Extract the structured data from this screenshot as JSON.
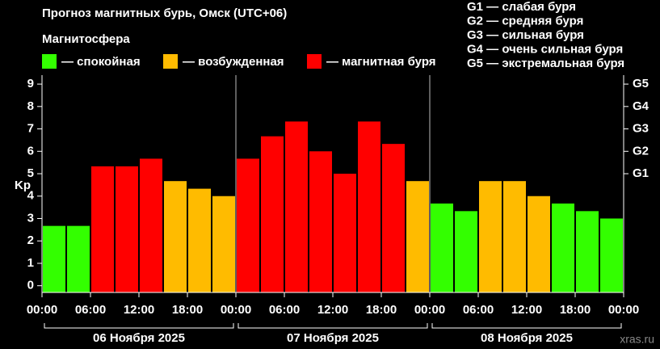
{
  "chart_data": {
    "type": "bar",
    "title": "Прогноз магнитных бурь, Омск (UTC+06)",
    "legend": {
      "title": "Магнитосфера",
      "items": [
        {
          "name": "— спокойная",
          "color": "#33ff00"
        },
        {
          "name": "— возбужденная",
          "color": "#ffbb00"
        },
        {
          "name": "— магнитная буря",
          "color": "#ff0000"
        }
      ]
    },
    "storm_scale": [
      "G1 — слабая буря",
      "G2 — средняя буря",
      "G3 — сильная буря",
      "G4 — очень сильная буря",
      "G5 — экстремальная буря"
    ],
    "ylabel": "Kp",
    "values": [
      2.67,
      2.67,
      5.33,
      5.33,
      5.67,
      4.67,
      4.33,
      4.0,
      5.67,
      6.67,
      7.33,
      6.0,
      5.0,
      7.33,
      6.33,
      4.67,
      3.67,
      3.33,
      4.67,
      4.67,
      4.0,
      3.67,
      3.33,
      3.0
    ],
    "colors": [
      "#33ff00",
      "#33ff00",
      "#ff0000",
      "#ff0000",
      "#ff0000",
      "#ffbb00",
      "#ffbb00",
      "#ffbb00",
      "#ff0000",
      "#ff0000",
      "#ff0000",
      "#ff0000",
      "#ff0000",
      "#ff0000",
      "#ff0000",
      "#ffbb00",
      "#33ff00",
      "#33ff00",
      "#ffbb00",
      "#ffbb00",
      "#ffbb00",
      "#33ff00",
      "#33ff00",
      "#33ff00"
    ],
    "ylim": [
      -0.3,
      9.4
    ],
    "yticks": [
      0,
      1,
      2,
      3,
      4,
      5,
      6,
      7,
      8,
      9
    ],
    "y2lim": [
      -0.3,
      9.4
    ],
    "y2ticks": [
      {
        "value": 5,
        "label": "G1"
      },
      {
        "value": 6,
        "label": "G2"
      },
      {
        "value": 7,
        "label": "G3"
      },
      {
        "value": 8,
        "label": "G4"
      },
      {
        "value": 9,
        "label": "G5"
      }
    ],
    "xtick_labels": [
      "00:00",
      "06:00",
      "12:00",
      "18:00",
      "00:00",
      "06:00",
      "12:00",
      "18:00",
      "00:00",
      "06:00",
      "12:00",
      "18:00",
      "00:00"
    ],
    "days": [
      "06 Ноября 2025",
      "07 Ноября 2025",
      "08 Ноября 2025"
    ],
    "watermark": "xras.ru"
  }
}
